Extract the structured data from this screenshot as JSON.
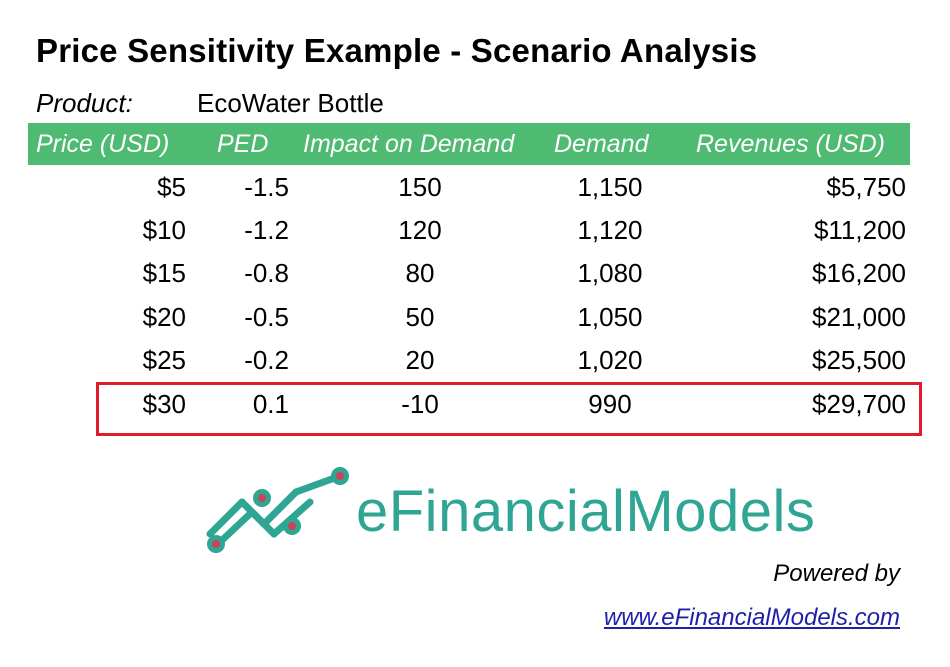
{
  "title": "Price Sensitivity Example - Scenario Analysis",
  "product": {
    "label": "Product:",
    "name": "EcoWater Bottle"
  },
  "table": {
    "headers": [
      "Price (USD)",
      "PED",
      "Impact on Demand",
      "Demand",
      "Revenues (USD)"
    ],
    "rows": [
      [
        "$5",
        "-1.5",
        "150",
        "1,150",
        "$5,750"
      ],
      [
        "$10",
        "-1.2",
        "120",
        "1,120",
        "$11,200"
      ],
      [
        "$15",
        "-0.8",
        "80",
        "1,080",
        "$16,200"
      ],
      [
        "$20",
        "-0.5",
        "50",
        "1,050",
        "$21,000"
      ],
      [
        "$25",
        "-0.2",
        "20",
        "1,020",
        "$25,500"
      ],
      [
        "$30",
        "0.1",
        "-10",
        "990",
        "$29,700"
      ]
    ],
    "highlighted_row": 5
  },
  "brand": {
    "logo_text": "eFinancialModels",
    "powered_by": "Powered by",
    "url": "www.eFinancialModels.com",
    "colors": {
      "header_green": "#4fba71",
      "logo_teal": "#2fa593",
      "highlight_red": "#e11b2b"
    }
  }
}
